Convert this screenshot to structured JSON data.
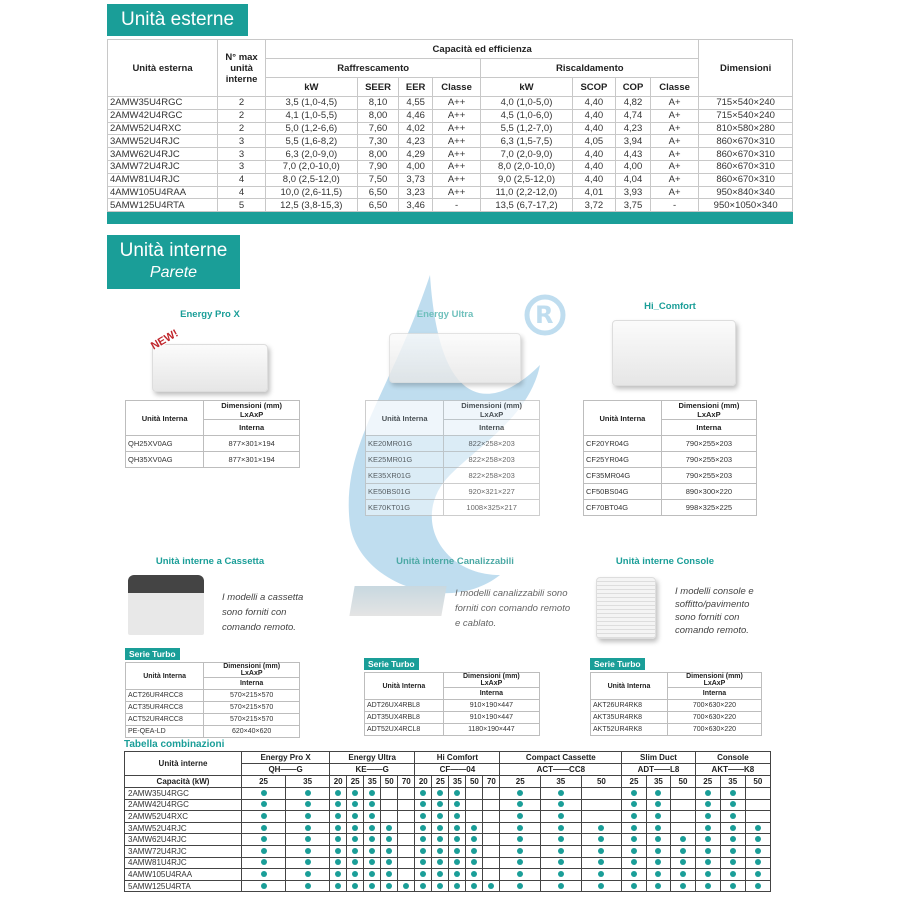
{
  "outdoor": {
    "title": "Unità esterne",
    "headers": {
      "model": "Unità esterna",
      "max_units": "N° max unità interne",
      "capacity": "Capacità ed efficienza",
      "cooling": "Raffrescamento",
      "heating": "Riscaldamento",
      "dimensions": "Dimensioni",
      "kw": "kW",
      "seer": "SEER",
      "eer": "EER",
      "class": "Classe",
      "scop": "SCOP",
      "cop": "COP"
    },
    "rows": [
      [
        "2AMW35U4RGC",
        "2",
        "3,5 (1,0-4,5)",
        "8,10",
        "4,55",
        "A++",
        "4,0 (1,0-5,0)",
        "4,40",
        "4,82",
        "A+",
        "715×540×240"
      ],
      [
        "2AMW42U4RGC",
        "2",
        "4,1 (1,0-5,5)",
        "8,00",
        "4,46",
        "A++",
        "4,5 (1,0-6,0)",
        "4,40",
        "4,74",
        "A+",
        "715×540×240"
      ],
      [
        "2AMW52U4RXC",
        "2",
        "5,0 (1,2-6,6)",
        "7,60",
        "4,02",
        "A++",
        "5,5 (1,2-7,0)",
        "4,40",
        "4,23",
        "A+",
        "810×580×280"
      ],
      [
        "3AMW52U4RJC",
        "3",
        "5,5 (1,6-8,2)",
        "7,30",
        "4,23",
        "A++",
        "6,3 (1,5-7,5)",
        "4,05",
        "3,94",
        "A+",
        "860×670×310"
      ],
      [
        "3AMW62U4RJC",
        "3",
        "6,3 (2,0-9,0)",
        "8,00",
        "4,29",
        "A++",
        "7,0 (2,0-9,0)",
        "4,40",
        "4,43",
        "A+",
        "860×670×310"
      ],
      [
        "3AMW72U4RJC",
        "3",
        "7,0 (2,0-10,0)",
        "7,90",
        "4,00",
        "A++",
        "8,0 (2,0-10,0)",
        "4,40",
        "4,00",
        "A+",
        "860×670×310"
      ],
      [
        "4AMW81U4RJC",
        "4",
        "8,0 (2,5-12,0)",
        "7,50",
        "3,73",
        "A++",
        "9,0 (2,5-12,0)",
        "4,40",
        "4,04",
        "A+",
        "860×670×310"
      ],
      [
        "4AMW105U4RAA",
        "4",
        "10,0 (2,6-11,5)",
        "6,50",
        "3,23",
        "A++",
        "11,0 (2,2-12,0)",
        "4,01",
        "3,93",
        "A+",
        "950×840×340"
      ],
      [
        "5AMW125U4RTA",
        "5",
        "12,5 (3,8-15,3)",
        "6,50",
        "3,46",
        "-",
        "13,5 (6,7-17,2)",
        "3,72",
        "3,75",
        "-",
        "950×1050×340"
      ]
    ]
  },
  "indoor": {
    "title": "Unità interne",
    "subtitle": "Parete",
    "table_headers": {
      "unit": "Unità Interna",
      "dims": "Dimensioni (mm)",
      "dims_sub": "LxAxP",
      "internal": "Interna"
    },
    "series_label": "Serie Turbo",
    "new_badge": "NEW!",
    "wall": [
      {
        "name": "Energy Pro X",
        "rows": [
          [
            "QH25XV0AG",
            "877×301×194"
          ],
          [
            "QH35XV0AG",
            "877×301×194"
          ]
        ]
      },
      {
        "name": "Energy Ultra",
        "rows": [
          [
            "KE20MR01G",
            "822×258×203"
          ],
          [
            "KE25MR01G",
            "822×258×203"
          ],
          [
            "KE35XR01G",
            "822×258×203"
          ],
          [
            "KE50BS01G",
            "920×321×227"
          ],
          [
            "KE70KT01G",
            "1008×325×217"
          ]
        ]
      },
      {
        "name": "Hi_Comfort",
        "rows": [
          [
            "CF20YR04G",
            "790×255×203"
          ],
          [
            "CF25YR04G",
            "790×255×203"
          ],
          [
            "CF35MR04G",
            "790×255×203"
          ],
          [
            "CF50BS04G",
            "890×300×220"
          ],
          [
            "CF70BT04G",
            "998×325×225"
          ]
        ]
      }
    ],
    "other": [
      {
        "name": "Unità interne a Cassetta",
        "desc": "I modelli a cassetta sono forniti con comando remoto.",
        "rows": [
          [
            "ACT26UR4RCC8",
            "570×215×570"
          ],
          [
            "ACT35UR4RCC8",
            "570×215×570"
          ],
          [
            "ACT52UR4RCC8",
            "570×215×570"
          ],
          [
            "PE-QEA-LD",
            "620×40×620"
          ]
        ]
      },
      {
        "name": "Unità interne Canalizzabili",
        "desc": "I modelli canalizzabili sono forniti con comando remoto e cablato.",
        "rows": [
          [
            "ADT26UX4RBL8",
            "910×190×447"
          ],
          [
            "ADT35UX4RBL8",
            "910×190×447"
          ],
          [
            "ADT52UX4RCL8",
            "1180×190×447"
          ]
        ]
      },
      {
        "name": "Unità interne Console",
        "desc": "I modelli console e soffitto/pavimento sono forniti con comando remoto.",
        "rows": [
          [
            "AKT26UR4RK8",
            "700×630×220"
          ],
          [
            "AKT35UR4RK8",
            "700×630×220"
          ],
          [
            "AKT52UR4RK8",
            "700×630×220"
          ]
        ]
      }
    ]
  },
  "combinations": {
    "title": "Tabella combinazioni",
    "row_header": "Unità interne",
    "capacity_label": "Capacità (kW)",
    "groups": [
      {
        "name": "Energy Pro X",
        "code": "QH——G",
        "caps": [
          "25",
          "35"
        ]
      },
      {
        "name": "Energy Ultra",
        "code": "KE——G",
        "caps": [
          "20",
          "25",
          "35",
          "50",
          "70"
        ]
      },
      {
        "name": "Hi Comfort",
        "code": "CF——04",
        "caps": [
          "20",
          "25",
          "35",
          "50",
          "70"
        ]
      },
      {
        "name": "Compact Cassette",
        "code": "ACT——CC8",
        "caps": [
          "25",
          "35",
          "50"
        ]
      },
      {
        "name": "Slim Duct",
        "code": "ADT——L8",
        "caps": [
          "25",
          "35",
          "50"
        ]
      },
      {
        "name": "Console",
        "code": "AKT——K8",
        "caps": [
          "25",
          "35",
          "50"
        ]
      }
    ],
    "rows": [
      {
        "model": "2AMW35U4RGC",
        "compat": [
          1,
          1,
          1,
          1,
          1,
          0,
          0,
          1,
          1,
          1,
          0,
          0,
          1,
          1,
          0,
          1,
          1,
          0,
          1,
          1,
          0
        ]
      },
      {
        "model": "2AMW42U4RGC",
        "compat": [
          1,
          1,
          1,
          1,
          1,
          0,
          0,
          1,
          1,
          1,
          0,
          0,
          1,
          1,
          0,
          1,
          1,
          0,
          1,
          1,
          0
        ]
      },
      {
        "model": "2AMW52U4RXC",
        "compat": [
          1,
          1,
          1,
          1,
          1,
          0,
          0,
          1,
          1,
          1,
          0,
          0,
          1,
          1,
          0,
          1,
          1,
          0,
          1,
          1,
          0
        ]
      },
      {
        "model": "3AMW52U4RJC",
        "compat": [
          1,
          1,
          1,
          1,
          1,
          1,
          0,
          1,
          1,
          1,
          1,
          0,
          1,
          1,
          1,
          1,
          1,
          0,
          1,
          1,
          1
        ]
      },
      {
        "model": "3AMW62U4RJC",
        "compat": [
          1,
          1,
          1,
          1,
          1,
          1,
          0,
          1,
          1,
          1,
          1,
          0,
          1,
          1,
          1,
          1,
          1,
          1,
          1,
          1,
          1
        ]
      },
      {
        "model": "3AMW72U4RJC",
        "compat": [
          1,
          1,
          1,
          1,
          1,
          1,
          0,
          1,
          1,
          1,
          1,
          0,
          1,
          1,
          1,
          1,
          1,
          1,
          1,
          1,
          1
        ]
      },
      {
        "model": "4AMW81U4RJC",
        "compat": [
          1,
          1,
          1,
          1,
          1,
          1,
          0,
          1,
          1,
          1,
          1,
          0,
          1,
          1,
          1,
          1,
          1,
          1,
          1,
          1,
          1
        ]
      },
      {
        "model": "4AMW105U4RAA",
        "compat": [
          1,
          1,
          1,
          1,
          1,
          1,
          0,
          1,
          1,
          1,
          1,
          0,
          1,
          1,
          1,
          1,
          1,
          1,
          1,
          1,
          1
        ]
      },
      {
        "model": "5AMW125U4RTA",
        "compat": [
          1,
          1,
          1,
          1,
          1,
          1,
          1,
          1,
          1,
          1,
          1,
          1,
          1,
          1,
          1,
          1,
          1,
          1,
          1,
          1,
          1
        ]
      }
    ]
  },
  "colors": {
    "accent": "#1a9e98",
    "watermark": "#7fb8dd"
  }
}
